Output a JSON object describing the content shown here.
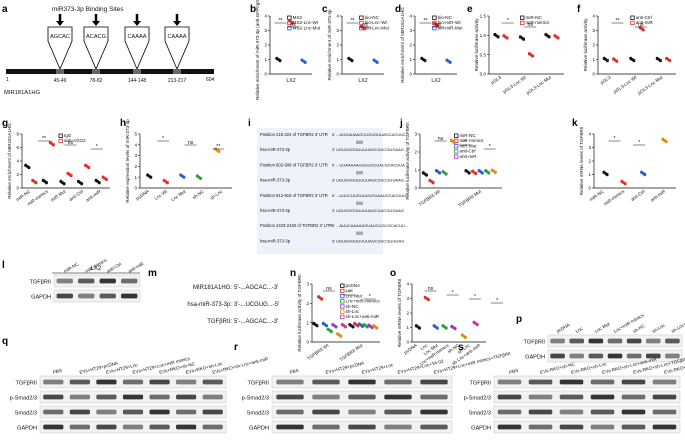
{
  "figure": {
    "panel_letters": [
      "a",
      "b",
      "c",
      "d",
      "e",
      "f",
      "g",
      "h",
      "i",
      "j",
      "k",
      "l",
      "m",
      "n",
      "o",
      "p",
      "q",
      "r",
      "s"
    ]
  },
  "panel_a": {
    "title": "miR373-3p Binding Sites",
    "sites": [
      {
        "seq": "AGCAC",
        "range": "45-49"
      },
      {
        "seq": "ACACG",
        "range": "78-82"
      },
      {
        "seq": "CAAAA",
        "range": "144-148"
      },
      {
        "seq": "CAAAA",
        "range": "213-217"
      }
    ],
    "start": "1",
    "end": "604",
    "gene": "MIR181A1HG"
  },
  "chart_data": [
    {
      "panel": "b",
      "type": "scatter",
      "ylabel": "Relative enrichment of miR-373-3p (anti-GFP/IgG-BP)",
      "xlabel": "LX2",
      "legend": [
        "MS2",
        "MS2-Lnc-Wt",
        "MS2-Lnc-Mut"
      ],
      "yticks": [
        "0",
        "1",
        "2",
        "3",
        "4"
      ],
      "values": [
        1.0,
        3.6,
        0.9
      ],
      "annotations": [
        "**",
        "ns"
      ]
    },
    {
      "panel": "c",
      "type": "scatter",
      "ylabel": "Relative enrichment of miR-373-3p",
      "xlabel": "LX2",
      "legend": [
        "bio-NC",
        "bio-Lnc-Wt",
        "bio-Lnc-Mut"
      ],
      "yticks": [
        "0",
        "1",
        "2",
        "3",
        "4"
      ],
      "values": [
        1.0,
        3.2,
        0.9
      ],
      "annotations": [
        "**",
        "ns"
      ]
    },
    {
      "panel": "d",
      "type": "scatter",
      "ylabel": "Relative enrichment of MIR181A1HG",
      "xlabel": "LX2",
      "legend": [
        "bio-NC",
        "bio-miR-Wt",
        "bio-miR-Mut"
      ],
      "yticks": [
        "0",
        "1",
        "2",
        "3",
        "4"
      ],
      "values": [
        1.0,
        3.4,
        0.9
      ],
      "annotations": [
        "**",
        "ns"
      ]
    },
    {
      "panel": "e",
      "type": "scatter",
      "ylabel": "Relative luciferase activity",
      "legend": [
        "miR-NC",
        "miR-mimics"
      ],
      "categories": [
        "pGL3",
        "pGL3-Lnc Wt",
        "pGL3-Lnc Mut"
      ],
      "yticks": [
        "0.0",
        "0.5",
        "1.0",
        "1.5"
      ],
      "annotations": [
        "*",
        "ns"
      ]
    },
    {
      "panel": "f",
      "type": "scatter",
      "ylabel": "Relative luciferase activity",
      "legend": [
        "anti-Ctrl",
        "anti-miR"
      ],
      "categories": [
        "pGL3",
        "pGL3-Lnc Wt",
        "pGL3-Lnc Mut"
      ],
      "yticks": [
        "0",
        "1",
        "2",
        "3",
        "4"
      ],
      "annotations": [
        "**",
        "ns"
      ]
    },
    {
      "panel": "g",
      "type": "scatter",
      "ylabel": "Relative enrichment of MIR181A1HG",
      "legend": [
        "IgG",
        "anti-AGO2"
      ],
      "categories": [
        "miR-NC",
        "miR-mimics",
        "miR Mut",
        "anti-Ctrl",
        "anti-miR"
      ],
      "yticks": [
        "0",
        "2",
        "4",
        "6",
        "8"
      ],
      "annotations": [
        "**",
        "ns",
        "*"
      ]
    },
    {
      "panel": "h",
      "type": "scatter",
      "ylabel": "Relative expression levels of miR-373-3p",
      "categories": [
        "pcDNA",
        "Lnc Wt",
        "Lnc Mut",
        "sh-NC",
        "sh-Lnc"
      ],
      "yticks": [
        "0",
        "1",
        "2",
        "3",
        "4",
        "5"
      ],
      "annotations": [
        "*",
        "ns",
        "**"
      ]
    },
    {
      "panel": "j",
      "type": "scatter",
      "ylabel": "Relative luciferase activity of TGFBRII",
      "legend": [
        "miR-NC",
        "miR-mimics",
        "miR Mut",
        "anti-Ctrl",
        "anti-miR"
      ],
      "categories": [
        "TGFBRII Wt",
        "TGFBRII Mut"
      ],
      "yticks": [
        "0",
        "1",
        "2",
        "3"
      ],
      "annotations": [
        "ns",
        "*",
        "*"
      ]
    },
    {
      "panel": "k",
      "type": "scatter",
      "ylabel": "Relative mRNA levels of TGFBRII",
      "categories": [
        "miR-NC",
        "miR-mimics",
        "anti-Ctrl",
        "anti-miR"
      ],
      "yticks": [
        "0",
        "1",
        "2",
        "3",
        "4"
      ],
      "annotations": [
        "*",
        "*"
      ]
    },
    {
      "panel": "n",
      "type": "scatter",
      "ylabel": "Relative luciferase activity of TGFBRII",
      "legend": [
        "pcDNA",
        "Lnc",
        "Lnc Mut",
        "Lnc+miR-mimics",
        "sh-NC",
        "sh-Lnc",
        "sh-Lnc+anti-miR"
      ],
      "categories": [
        "TGFBRII Wt",
        "TGFBRII Mut"
      ],
      "yticks": [
        "0",
        "1",
        "2",
        "3"
      ],
      "annotations": [
        "ns",
        "*",
        "*"
      ]
    },
    {
      "panel": "o",
      "type": "scatter",
      "ylabel": "Relative mRNA levels of TGFBRII",
      "categories": [
        "pcDNA",
        "Lnc",
        "Lnc Mut",
        "Lnc+miR-mimics",
        "sh-NC",
        "sh-Lnc",
        "sh-Lnc+anti-miR"
      ],
      "yticks": [
        "0",
        "1",
        "2",
        "3",
        "4"
      ],
      "annotations": [
        "ns",
        "*",
        "*",
        "*"
      ]
    }
  ],
  "panel_i": {
    "rows": [
      {
        "label": "Position 218-224 of TGFBR2 3' UTR",
        "seq": "5' ...AGGAUAAGCUGUGUUAGCACUUC..."
      },
      {
        "label": "hsa-miR-373-3p",
        "seq": "3' UGUGGGGUUUUAGCUUCGUGAAG"
      },
      {
        "label": "Position 602-608 of TGFBR2 3' UTR",
        "seq": "5' ...UUAAAAAGUUUGCUACGCACUUA..."
      },
      {
        "label": "hsa-miR-373-3p",
        "seq": "3' UGUGGGGUUUUAGCUUCGUGAAG"
      },
      {
        "label": "Position 912-918 of TGFBR2 3' UTR",
        "seq": "5' ...UUUCUUGUUUUGUAAUGCACUUU..."
      },
      {
        "label": "hsa-miR-373-3p",
        "seq": "3' UGUGGGGUUUUAGCUUCGUGAAG"
      },
      {
        "label": "Position 2423-2430 of TGFBR2 3' UTR",
        "seq": "5' ...AUUCAAAAAGUAUCUGCGCACUU..."
      },
      {
        "label": "hsa-miR-373-3p",
        "seq": "3' UGUGGGGUUUUAGCUUCGUGGAG"
      }
    ]
  },
  "panel_l": {
    "title": "LX2",
    "lanes": [
      "miR-NC",
      "miR-mimics",
      "anti-Ctrl",
      "anti-miR"
    ],
    "rows": [
      "TGFβRII",
      "GAPDH"
    ]
  },
  "panel_m": {
    "rows": [
      {
        "label": "MIR181A1HG:",
        "seq": "5'-...AGCAC...-3'"
      },
      {
        "label": "hsa-miR-373-3p:",
        "seq": "3'-...UCGUG...-5'"
      },
      {
        "label": "TGFβRII:",
        "seq": "5'-...AGCAC...-3'"
      }
    ]
  },
  "panel_p": {
    "lanes": [
      "pcDNA",
      "Lnc",
      "Lnc Mut",
      "Lnc+miR mimics",
      "sh-NC",
      "sh-Lnc",
      "sh-Lnc+anti-miR"
    ],
    "rows": [
      "TGFβRII",
      "GAPDH"
    ]
  },
  "panel_q": {
    "lanes": [
      "PBS",
      "EVs+HT29+pcDNA",
      "EVs+HT29+Lnc",
      "EVs+HT29+Lnc+miR mimics",
      "EVs+RKO+sh-NC",
      "EVs+RKO+sh-Lnc",
      "EVs+RKO+sh-Lnc+anti-miR"
    ],
    "rows": [
      "TGFβRII",
      "p-Smad2/3",
      "Smad2/3",
      "GAPDH"
    ]
  },
  "panel_r": {
    "lanes": [
      "PBS",
      "EVs+HT29+pcDNA",
      "EVs+HT29+Lnc",
      "EVs+HT29+Lnc+TA-02",
      "EVs+HT29+Lnc+miR mimics+TGFβRII"
    ],
    "rows": [
      "TGFβRII",
      "p-Smad2/3",
      "Smad2/3",
      "GAPDH"
    ]
  },
  "panel_s": {
    "lanes": [
      "PBS",
      "EVs-RKO+sh-NC",
      "EVs-RKO+sh-Lnc",
      "EVs-RKO+sh-Lnc+anti-miR",
      "EVs-RKO+sh-Lnc+TGFβRII",
      "EVs-RKO+sh-Lnc+anti-miR+TA-02"
    ],
    "rows": [
      "TGFβRII",
      "p-Smad2/3",
      "Smad2/3",
      "GAPDH"
    ]
  }
}
